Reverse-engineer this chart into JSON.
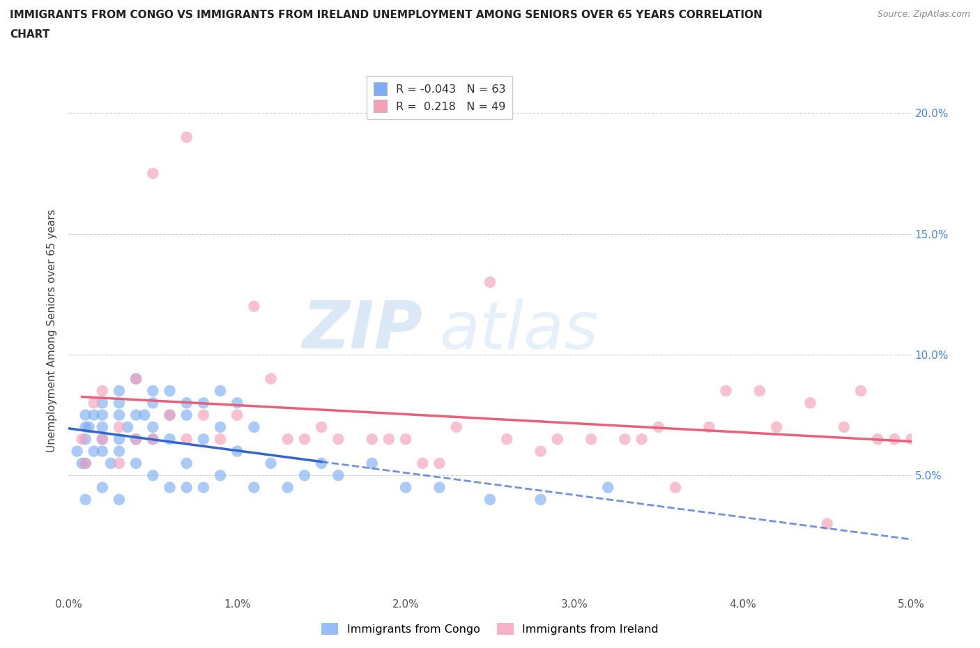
{
  "title": "IMMIGRANTS FROM CONGO VS IMMIGRANTS FROM IRELAND UNEMPLOYMENT AMONG SENIORS OVER 65 YEARS CORRELATION\nCHART",
  "source": "Source: ZipAtlas.com",
  "ylabel_label": "Unemployment Among Seniors over 65 years",
  "xlim": [
    0.0,
    0.05
  ],
  "ylim": [
    0.0,
    0.22
  ],
  "xticks": [
    0.0,
    0.01,
    0.02,
    0.03,
    0.04,
    0.05
  ],
  "xticklabels": [
    "0.0%",
    "1.0%",
    "2.0%",
    "3.0%",
    "4.0%",
    "5.0%"
  ],
  "yticks": [
    0.0,
    0.05,
    0.1,
    0.15,
    0.2
  ],
  "yticklabels_right": [
    "",
    "5.0%",
    "10.0%",
    "15.0%",
    "20.0%"
  ],
  "congo_color": "#7daef5",
  "ireland_color": "#f5a0b8",
  "congo_R": -0.043,
  "congo_N": 63,
  "ireland_R": 0.218,
  "ireland_N": 49,
  "congo_line_color": "#3366cc",
  "ireland_line_color": "#e8607a",
  "watermark_zip": "ZIP",
  "watermark_atlas": "atlas",
  "congo_x": [
    0.0005,
    0.0008,
    0.001,
    0.001,
    0.001,
    0.001,
    0.001,
    0.0012,
    0.0015,
    0.0015,
    0.002,
    0.002,
    0.002,
    0.002,
    0.002,
    0.002,
    0.0025,
    0.003,
    0.003,
    0.003,
    0.003,
    0.003,
    0.003,
    0.0035,
    0.004,
    0.004,
    0.004,
    0.004,
    0.0045,
    0.005,
    0.005,
    0.005,
    0.005,
    0.005,
    0.006,
    0.006,
    0.006,
    0.006,
    0.007,
    0.007,
    0.007,
    0.007,
    0.008,
    0.008,
    0.008,
    0.009,
    0.009,
    0.009,
    0.01,
    0.01,
    0.011,
    0.011,
    0.012,
    0.013,
    0.014,
    0.015,
    0.016,
    0.018,
    0.02,
    0.022,
    0.025,
    0.028,
    0.032
  ],
  "congo_y": [
    0.06,
    0.055,
    0.075,
    0.07,
    0.065,
    0.055,
    0.04,
    0.07,
    0.075,
    0.06,
    0.08,
    0.075,
    0.07,
    0.065,
    0.06,
    0.045,
    0.055,
    0.085,
    0.08,
    0.075,
    0.065,
    0.06,
    0.04,
    0.07,
    0.09,
    0.075,
    0.065,
    0.055,
    0.075,
    0.085,
    0.08,
    0.07,
    0.065,
    0.05,
    0.085,
    0.075,
    0.065,
    0.045,
    0.08,
    0.075,
    0.055,
    0.045,
    0.08,
    0.065,
    0.045,
    0.085,
    0.07,
    0.05,
    0.08,
    0.06,
    0.07,
    0.045,
    0.055,
    0.045,
    0.05,
    0.055,
    0.05,
    0.055,
    0.045,
    0.045,
    0.04,
    0.04,
    0.045
  ],
  "ireland_x": [
    0.0008,
    0.001,
    0.0015,
    0.002,
    0.002,
    0.003,
    0.003,
    0.004,
    0.004,
    0.005,
    0.005,
    0.006,
    0.007,
    0.007,
    0.008,
    0.009,
    0.01,
    0.011,
    0.012,
    0.013,
    0.014,
    0.015,
    0.016,
    0.018,
    0.019,
    0.02,
    0.021,
    0.022,
    0.023,
    0.025,
    0.026,
    0.028,
    0.029,
    0.031,
    0.033,
    0.034,
    0.035,
    0.036,
    0.038,
    0.039,
    0.041,
    0.042,
    0.044,
    0.045,
    0.046,
    0.047,
    0.048,
    0.049,
    0.05
  ],
  "ireland_y": [
    0.065,
    0.055,
    0.08,
    0.085,
    0.065,
    0.07,
    0.055,
    0.09,
    0.065,
    0.175,
    0.065,
    0.075,
    0.19,
    0.065,
    0.075,
    0.065,
    0.075,
    0.12,
    0.09,
    0.065,
    0.065,
    0.07,
    0.065,
    0.065,
    0.065,
    0.065,
    0.055,
    0.055,
    0.07,
    0.13,
    0.065,
    0.06,
    0.065,
    0.065,
    0.065,
    0.065,
    0.07,
    0.045,
    0.07,
    0.085,
    0.085,
    0.07,
    0.08,
    0.03,
    0.07,
    0.085,
    0.065,
    0.065,
    0.065
  ]
}
